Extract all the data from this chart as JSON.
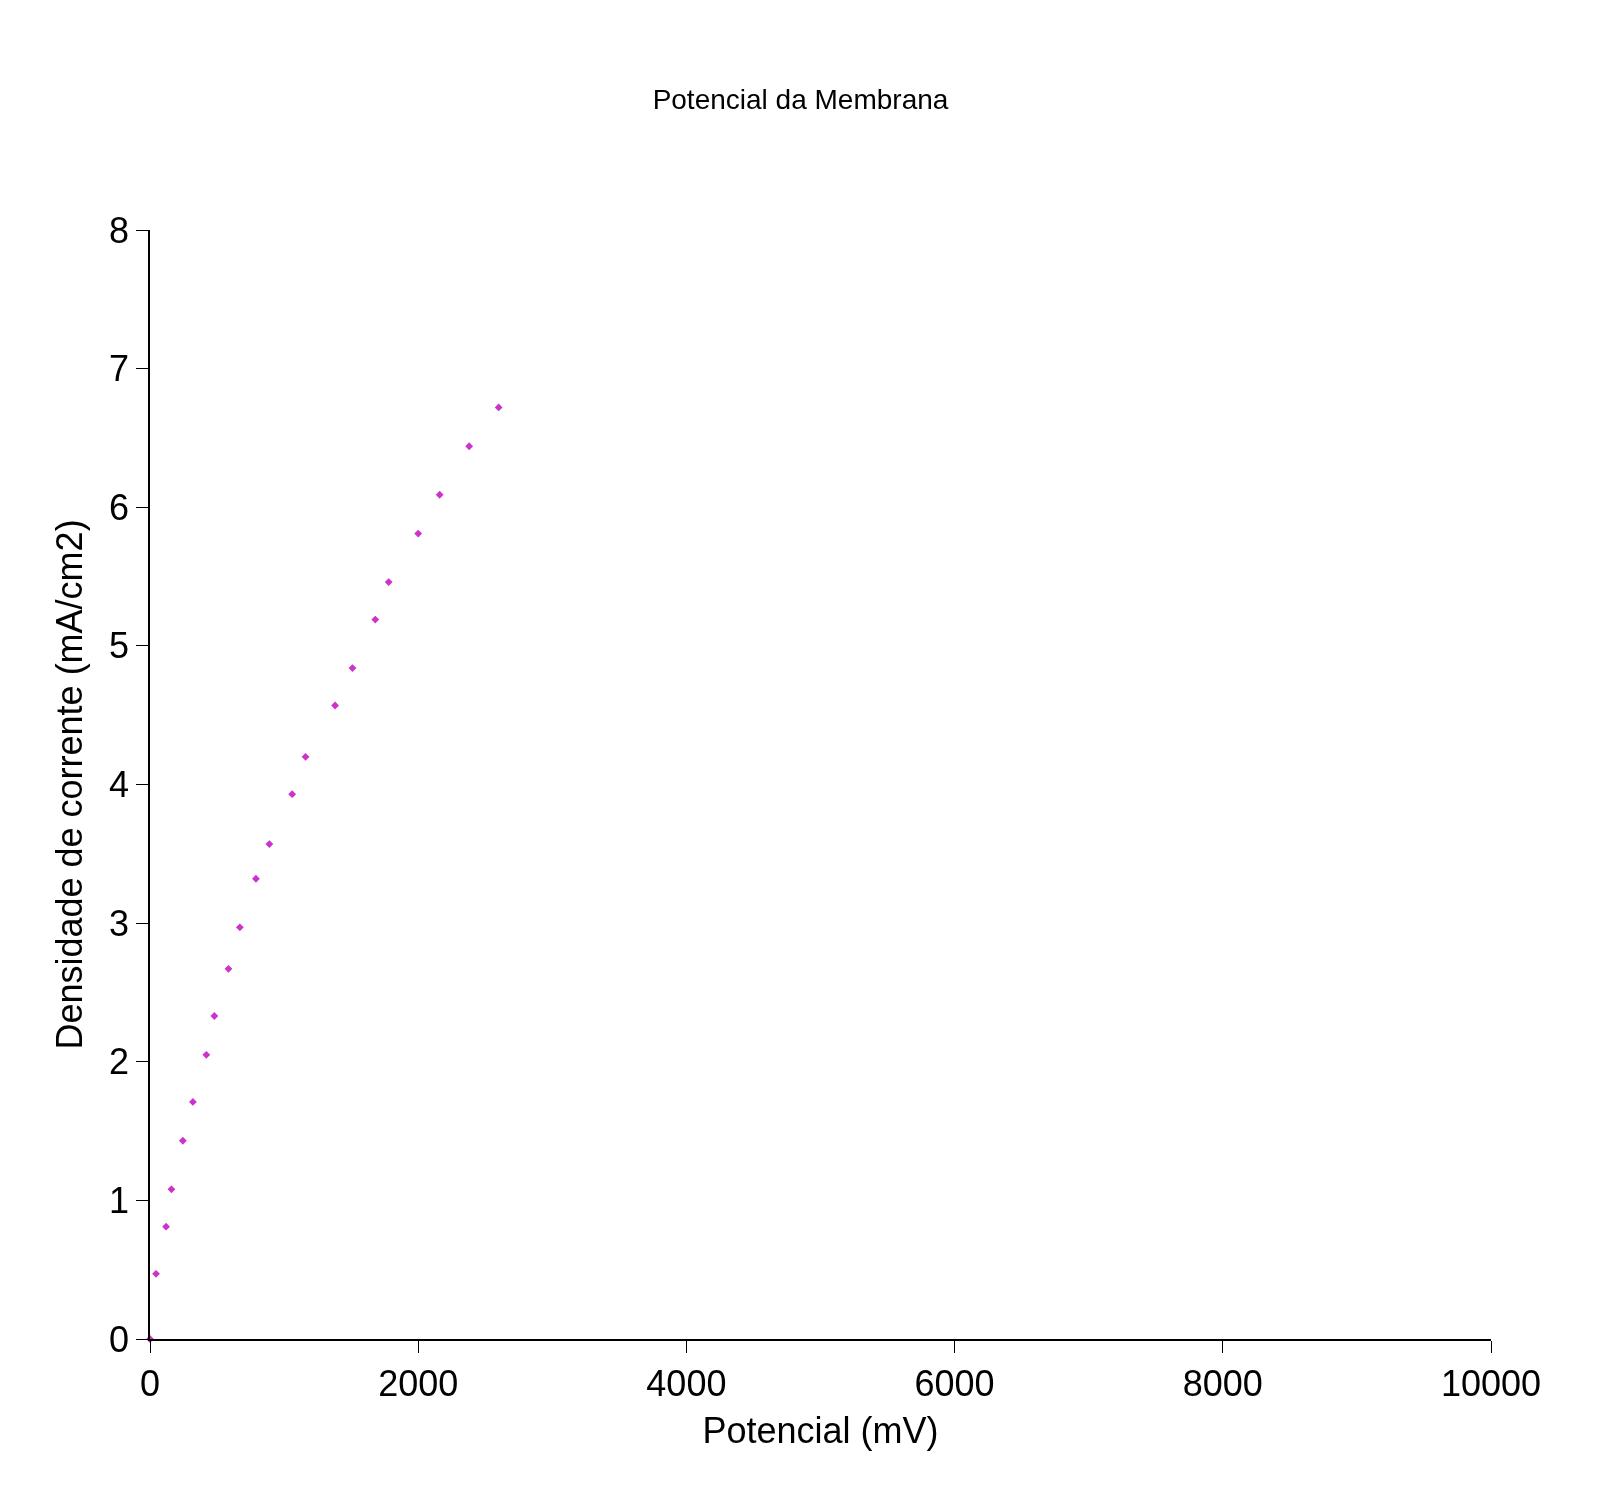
{
  "chart_data": {
    "type": "scatter",
    "title": "Potencial da Membrana",
    "xlabel": "Potencial (mV)",
    "ylabel": "Densidade de corrente (mA/cm2)",
    "x": [
      0,
      45,
      120,
      160,
      245,
      320,
      420,
      480,
      585,
      670,
      790,
      890,
      1060,
      1160,
      1380,
      1510,
      1680,
      1780,
      2000,
      2160,
      2380,
      2600
    ],
    "series": [
      {
        "color": "#cc33cc",
        "values": [
          0,
          0.47,
          0.81,
          1.08,
          1.43,
          1.71,
          2.05,
          2.33,
          2.67,
          2.97,
          3.32,
          3.57,
          3.93,
          4.2,
          4.57,
          4.84,
          5.19,
          5.46,
          5.81,
          6.09,
          6.44,
          6.72
        ]
      }
    ],
    "xlim": [
      0,
      10000
    ],
    "xticks": [
      0,
      2000,
      4000,
      6000,
      8000,
      10000
    ],
    "ylim": [
      0,
      8
    ],
    "yticks": [
      0,
      1,
      2,
      3,
      4,
      5,
      6,
      7,
      8
    ],
    "legend": false,
    "marker": "diamond"
  }
}
